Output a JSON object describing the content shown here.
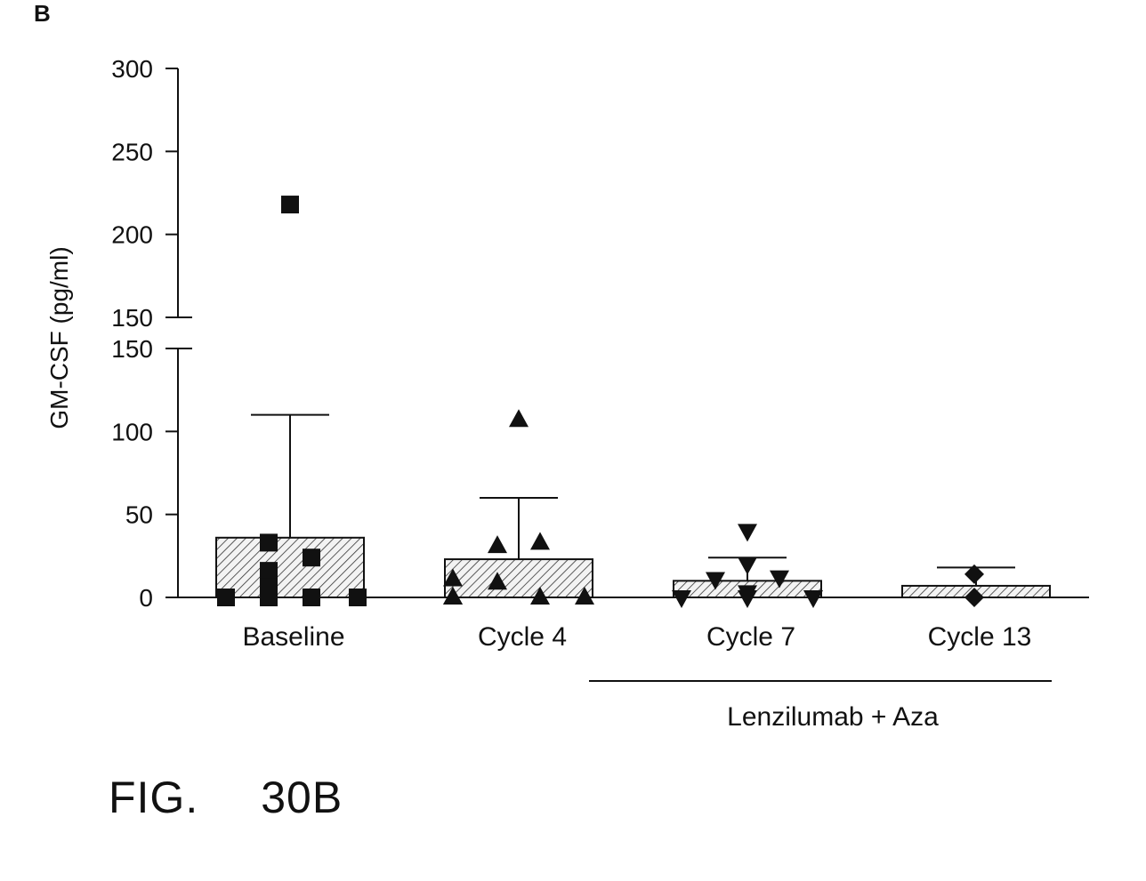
{
  "panel_label": "B",
  "figure": {
    "prefix": "FIG.",
    "number": "30B"
  },
  "chart_data": {
    "type": "bar",
    "ylabel": "GM-CSF (pg/ml)",
    "categories": [
      "Baseline",
      "Cycle 4",
      "Cycle 7",
      "Cycle 13"
    ],
    "values": [
      36,
      23,
      10,
      7
    ],
    "sd_upper": [
      110,
      60,
      24,
      18
    ],
    "y_axis": {
      "broken": true,
      "lower_segment": [
        0,
        150
      ],
      "upper_segment": [
        150,
        300
      ],
      "ticks_lower": [
        "0",
        "50",
        "100",
        "150"
      ],
      "ticks_upper": [
        "150",
        "200",
        "250",
        "300"
      ]
    },
    "series_markers": [
      "square",
      "triangle-up",
      "triangle-down",
      "diamond"
    ],
    "points": [
      [
        0,
        0,
        33,
        16,
        6,
        24,
        0,
        0,
        218
      ],
      [
        0,
        0,
        11,
        31,
        9,
        33,
        0,
        0,
        107
      ],
      [
        0,
        0,
        11,
        20,
        3,
        40,
        12,
        0
      ],
      [
        0,
        14
      ]
    ],
    "group_annotation": {
      "label": "Lenzilumab + Aza",
      "spans": [
        "Cycle 7",
        "Cycle 13"
      ]
    },
    "grid": false
  }
}
